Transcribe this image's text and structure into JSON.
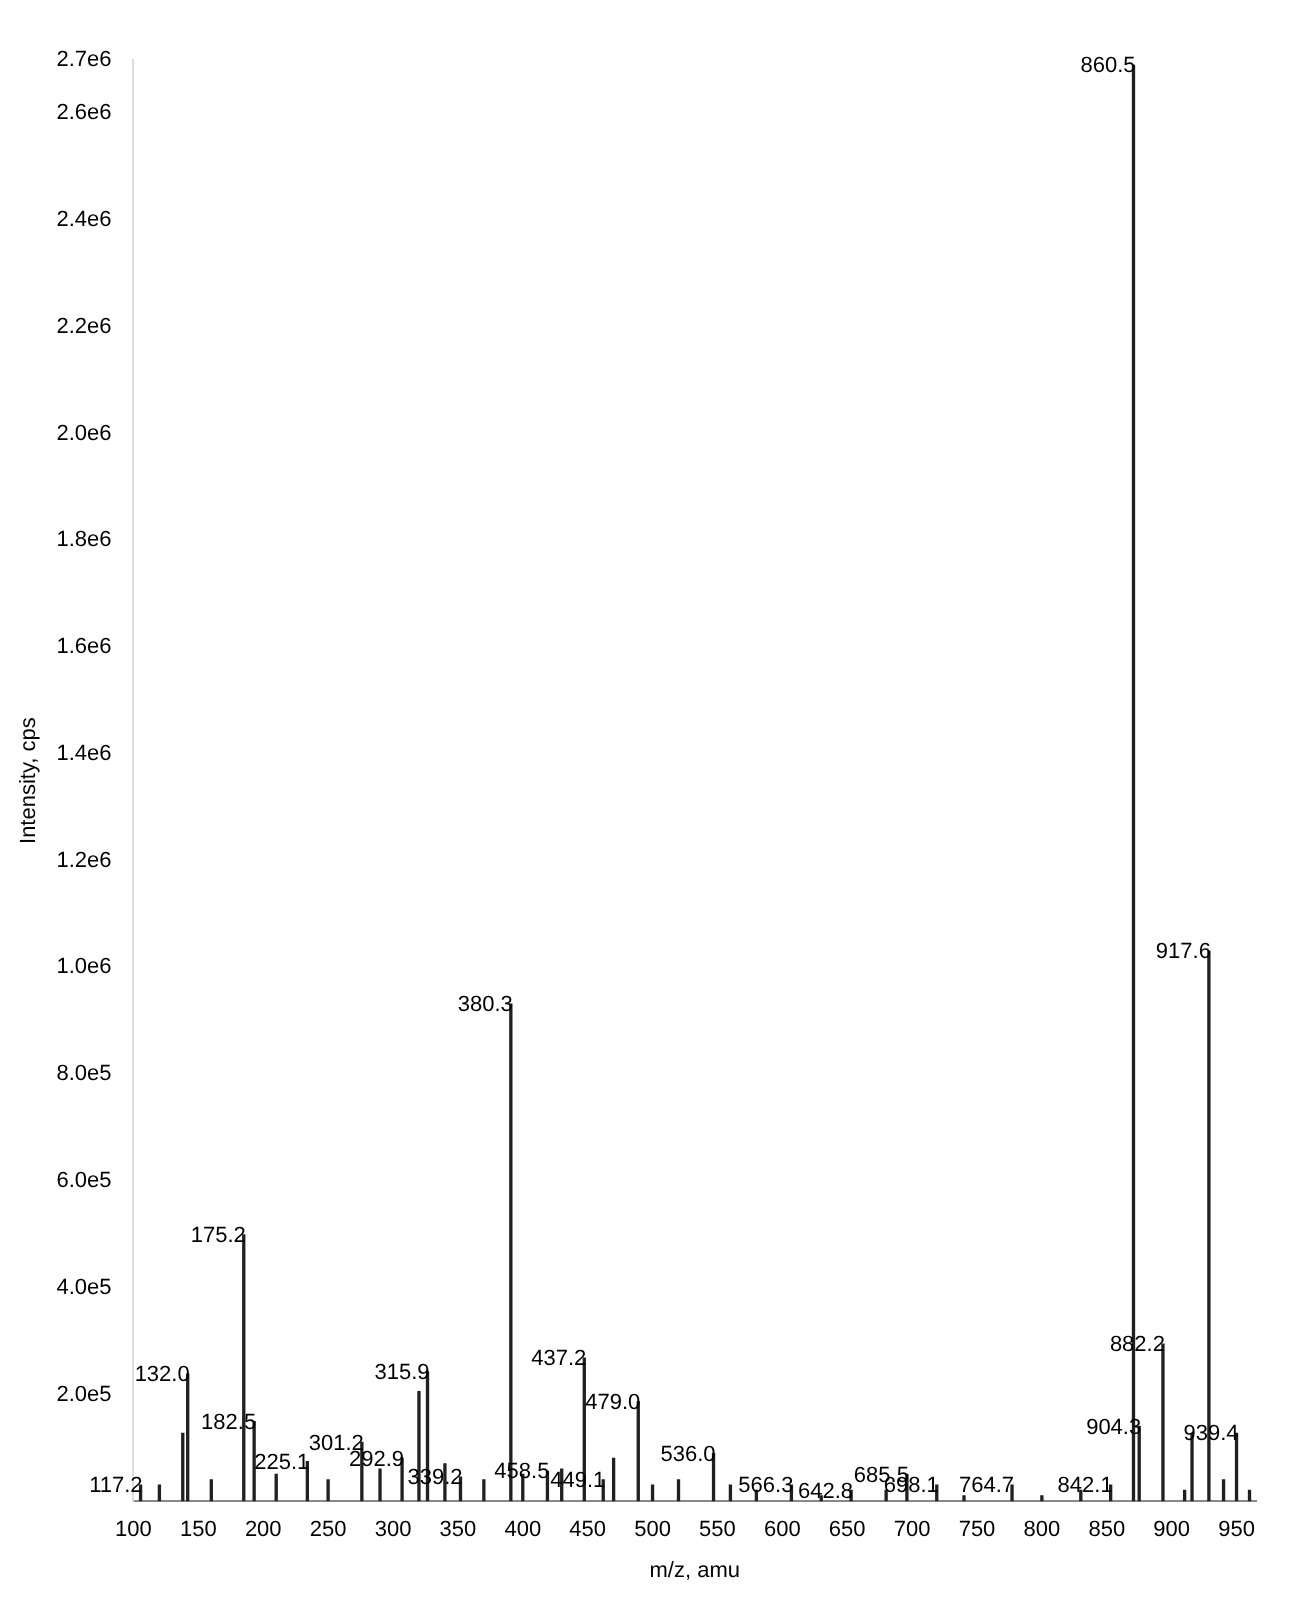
{
  "chart_data": {
    "type": "bar",
    "xlabel": "m/z, amu",
    "ylabel": "Intensity, cps",
    "x": [
      105.5,
      120,
      138,
      141.8,
      160,
      185,
      193,
      210,
      234,
      250,
      276,
      290,
      307,
      320,
      326.6,
      340,
      352,
      370,
      390.8,
      400,
      419,
      430,
      447.4,
      462,
      470,
      489,
      500,
      520,
      547,
      560,
      580,
      607,
      630,
      653,
      680,
      696,
      719,
      740,
      777,
      800,
      830,
      853,
      870.6,
      875,
      893.3,
      910,
      915.7,
      928.7,
      940,
      950,
      960
    ],
    "series": [
      {
        "color": "#202020",
        "values": [
          30000,
          30000,
          127000,
          238000,
          40000,
          499000,
          149000,
          50000,
          74000,
          40000,
          110000,
          60000,
          80000,
          205000,
          242000,
          70000,
          45000,
          40000,
          931000,
          50000,
          56000,
          60000,
          268000,
          40000,
          80000,
          186000,
          30000,
          40000,
          89000,
          30000,
          20000,
          30000,
          10000,
          20000,
          20000,
          50000,
          30000,
          10000,
          30000,
          10000,
          20000,
          30000,
          2690000,
          140000,
          294000,
          20000,
          127000,
          1030000,
          40000,
          127000,
          20000
        ]
      }
    ],
    "xlim": [
      100,
      965
    ],
    "xticks": [
      100,
      150,
      200,
      250,
      300,
      350,
      400,
      450,
      500,
      550,
      600,
      650,
      700,
      750,
      800,
      850,
      900,
      950
    ],
    "ylim": [
      0,
      2700000
    ],
    "yticks": [
      {
        "value": 200000,
        "label": "2.0e5"
      },
      {
        "value": 400000,
        "label": "4.0e5"
      },
      {
        "value": 600000,
        "label": "6.0e5"
      },
      {
        "value": 800000,
        "label": "8.0e5"
      },
      {
        "value": 1000000,
        "label": "1.0e6"
      },
      {
        "value": 1200000,
        "label": "1.2e6"
      },
      {
        "value": 1400000,
        "label": "1.4e6"
      },
      {
        "value": 1600000,
        "label": "1.6e6"
      },
      {
        "value": 1800000,
        "label": "1.8e6"
      },
      {
        "value": 2000000,
        "label": "2.0e6"
      },
      {
        "value": 2200000,
        "label": "2.2e6"
      },
      {
        "value": 2400000,
        "label": "2.4e6"
      },
      {
        "value": 2600000,
        "label": "2.6e6"
      },
      {
        "value": 2700000,
        "label": "2.7e6"
      }
    ],
    "grid": false,
    "legend": false,
    "annotations": [
      {
        "text": "117.2",
        "x": 105.5,
        "y": 30000
      },
      {
        "text": "132.0",
        "x": 141.8,
        "y": 238000
      },
      {
        "text": "175.2",
        "x": 185,
        "y": 499000
      },
      {
        "text": "182.5",
        "x": 193,
        "y": 149000
      },
      {
        "text": "225.1",
        "x": 234,
        "y": 74000
      },
      {
        "text": "301.2",
        "x": 276,
        "y": 110000
      },
      {
        "text": "292.9",
        "x": 307,
        "y": 80000
      },
      {
        "text": "315.9",
        "x": 326.6,
        "y": 242000
      },
      {
        "text": "339.2",
        "x": 352,
        "y": 45000
      },
      {
        "text": "380.3",
        "x": 390.8,
        "y": 931000
      },
      {
        "text": "458.5",
        "x": 419,
        "y": 56000
      },
      {
        "text": "437.2",
        "x": 447.4,
        "y": 268000
      },
      {
        "text": "449.1",
        "x": 462,
        "y": 40000
      },
      {
        "text": "479.0",
        "x": 489,
        "y": 186000
      },
      {
        "text": "536.0",
        "x": 547,
        "y": 89000
      },
      {
        "text": "566.3",
        "x": 607,
        "y": 30000
      },
      {
        "text": "642.8",
        "x": 653,
        "y": 20000
      },
      {
        "text": "685.5",
        "x": 696,
        "y": 50000
      },
      {
        "text": "698.1",
        "x": 719,
        "y": 30000
      },
      {
        "text": "764.7",
        "x": 777,
        "y": 30000
      },
      {
        "text": "842.1",
        "x": 853,
        "y": 30000
      },
      {
        "text": "860.5",
        "x": 870.6,
        "y": 2690000
      },
      {
        "text": "904.3",
        "x": 875,
        "y": 140000
      },
      {
        "text": "882.2",
        "x": 893.3,
        "y": 294000
      },
      {
        "text": "917.6",
        "x": 928.7,
        "y": 1030000
      },
      {
        "text": "939.4",
        "x": 950,
        "y": 127000
      }
    ]
  }
}
